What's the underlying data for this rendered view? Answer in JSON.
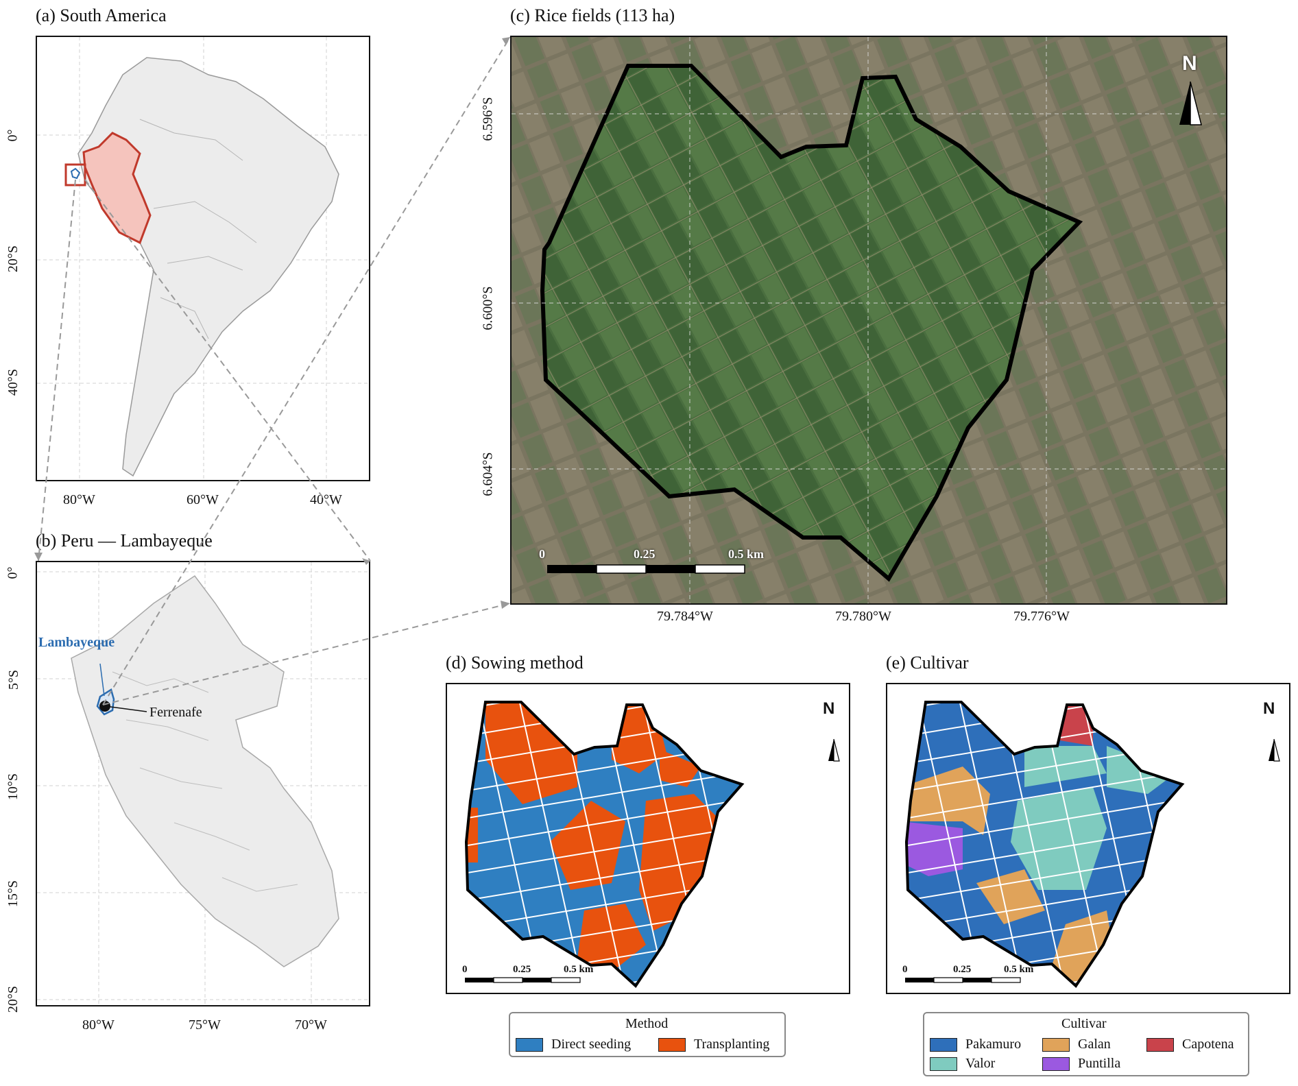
{
  "panels": {
    "a": {
      "title": "(a) South America",
      "xticks": [
        "80°W",
        "60°W",
        "40°W"
      ],
      "yticks": [
        "0°",
        "20°S",
        "40°S"
      ]
    },
    "b": {
      "title": "(b) Peru — Lambayeque",
      "xticks": [
        "80°W",
        "75°W",
        "70°W"
      ],
      "yticks": [
        "0°",
        "5°S",
        "10°S",
        "15°S",
        "20°S"
      ],
      "region_label": "Lambayeque",
      "city_label": "Ferrenafe"
    },
    "c": {
      "title": "(c) Rice fields (113 ha)",
      "xticks": [
        "79.784°W",
        "79.780°W",
        "79.776°W"
      ],
      "yticks": [
        "6.596°S",
        "6.600°S",
        "6.604°S"
      ],
      "scale": [
        "0",
        "0.25",
        "0.5 km"
      ],
      "north": "N"
    },
    "d": {
      "title": "(d) Sowing method",
      "scale": [
        "0",
        "0.25",
        "0.5 km"
      ],
      "north": "N"
    },
    "e": {
      "title": "(e) Cultivar",
      "scale": [
        "0",
        "0.25",
        "0.5 km"
      ],
      "north": "N"
    }
  },
  "legend_method": {
    "title": "Method",
    "items": [
      {
        "label": "Direct seeding",
        "color": "#2f7fc1"
      },
      {
        "label": "Transplanting",
        "color": "#e8520e"
      }
    ]
  },
  "legend_cultivar": {
    "title": "Cultivar",
    "items": [
      {
        "label": "Pakamuro",
        "color": "#2e6fba"
      },
      {
        "label": "Galan",
        "color": "#e0a35a"
      },
      {
        "label": "Capotena",
        "color": "#c9434b"
      },
      {
        "label": "Valor",
        "color": "#7fcbbf"
      },
      {
        "label": "Puntilla",
        "color": "#9b59e0"
      }
    ]
  },
  "colors": {
    "land": "#ececec",
    "peru_fill": "#f5c4bd",
    "peru_edge": "#c0392b",
    "lambayeque": "#2b6cb0",
    "imagery": "#3d5a36",
    "guide": "#999999"
  }
}
